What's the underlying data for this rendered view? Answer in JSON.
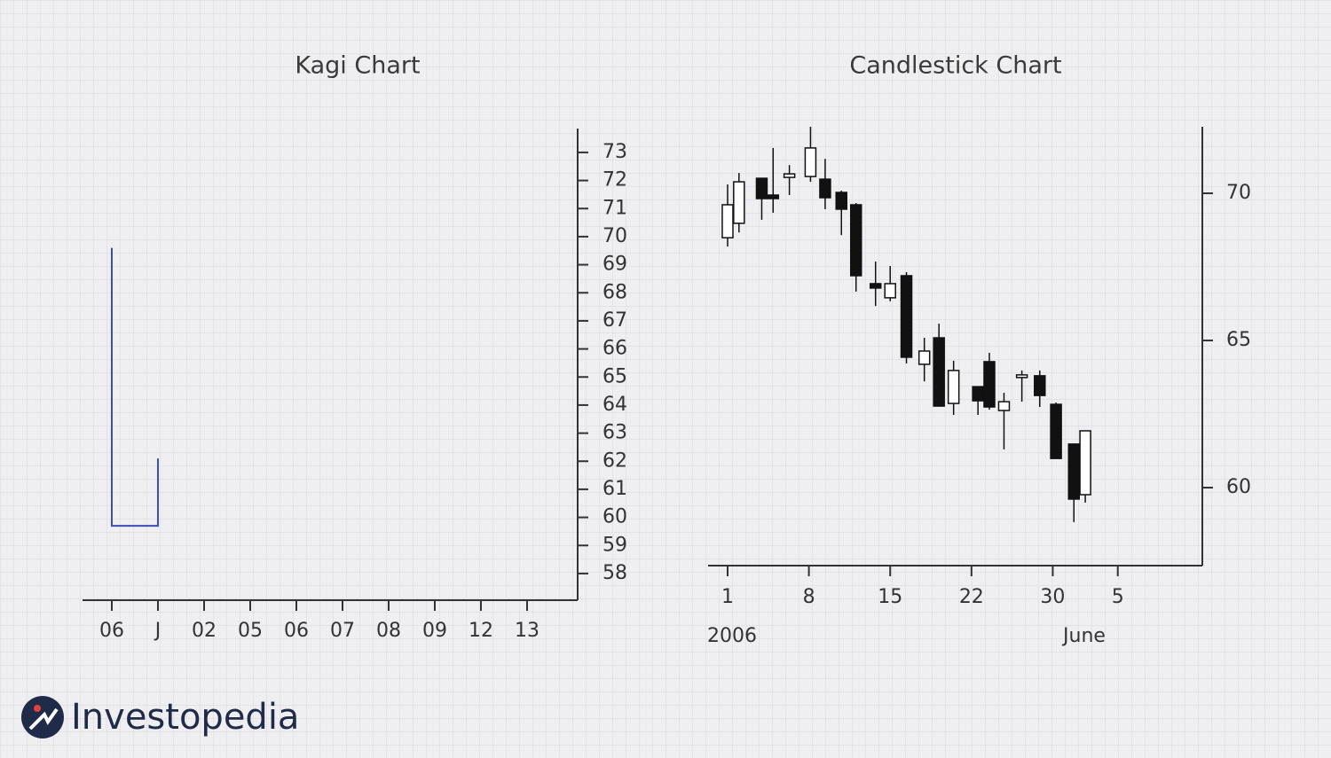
{
  "brand": "Investopedia",
  "chart_data": [
    {
      "type": "kagi",
      "title": "Kagi Chart",
      "categories": [
        "06",
        "J",
        "02",
        "05",
        "06",
        "07",
        "08",
        "09",
        "12",
        "13"
      ],
      "open": [
        69.6,
        59.7,
        null,
        null,
        null,
        null,
        null,
        null,
        null,
        null
      ],
      "close": [
        59.7,
        62.1,
        null,
        null,
        null,
        null,
        null,
        null,
        null,
        null
      ],
      "color": "#3a4fb0",
      "ylim": [
        57.05,
        73.85
      ],
      "yticks": [
        58,
        59,
        60,
        61,
        62,
        63,
        64,
        65,
        66,
        67,
        68,
        69,
        70,
        71,
        72,
        73
      ]
    },
    {
      "type": "candlestick",
      "title": "Candlestick Chart",
      "annotations": [
        "2006",
        "June"
      ],
      "x": [
        0,
        0.7,
        2.1,
        2.8,
        3.8,
        5.1,
        6.0,
        7.0,
        7.9,
        9.1,
        10.0,
        11.0,
        12.1,
        13.0,
        13.9,
        15.4,
        16.1,
        17.0,
        18.1,
        19.2,
        20.2,
        21.3,
        22.0
      ],
      "open": [
        68.49,
        68.98,
        70.51,
        69.94,
        70.54,
        70.57,
        70.48,
        70.03,
        69.61,
        66.93,
        66.45,
        67.2,
        64.19,
        65.09,
        62.86,
        63.43,
        64.28,
        62.62,
        63.74,
        63.8,
        62.83,
        61.48,
        59.76
      ],
      "high": [
        70.3,
        70.69,
        70.51,
        71.54,
        70.96,
        72.26,
        71.17,
        70.09,
        69.67,
        67.68,
        67.53,
        67.32,
        65.09,
        65.57,
        64.31,
        63.43,
        64.58,
        63.22,
        63.98,
        63.98,
        62.89,
        61.48,
        61.93
      ],
      "low": [
        68.19,
        68.67,
        69.1,
        69.34,
        69.94,
        70.39,
        69.46,
        68.58,
        66.66,
        66.17,
        66.33,
        64.22,
        63.61,
        62.77,
        62.47,
        62.47,
        62.65,
        61.3,
        62.92,
        62.74,
        60.99,
        58.83,
        59.49
      ],
      "close": [
        69.61,
        70.39,
        69.82,
        69.82,
        70.66,
        71.54,
        69.85,
        69.46,
        67.2,
        66.78,
        66.93,
        64.43,
        64.64,
        62.77,
        63.98,
        62.95,
        62.74,
        62.92,
        63.83,
        63.13,
        60.99,
        59.61,
        61.93
      ],
      "up_color": "#ffffff",
      "down_color": "#111111",
      "xlim": [
        -1.2,
        29.2
      ],
      "xticks": [
        {
          "value": 0,
          "label": "1"
        },
        {
          "value": 5,
          "label": "8"
        },
        {
          "value": 10,
          "label": "15"
        },
        {
          "value": 15,
          "label": "22"
        },
        {
          "value": 20,
          "label": "30"
        },
        {
          "value": 24,
          "label": "5"
        }
      ],
      "ylim": [
        57.35,
        72.26
      ],
      "yticks": [
        60,
        65,
        70
      ]
    }
  ]
}
